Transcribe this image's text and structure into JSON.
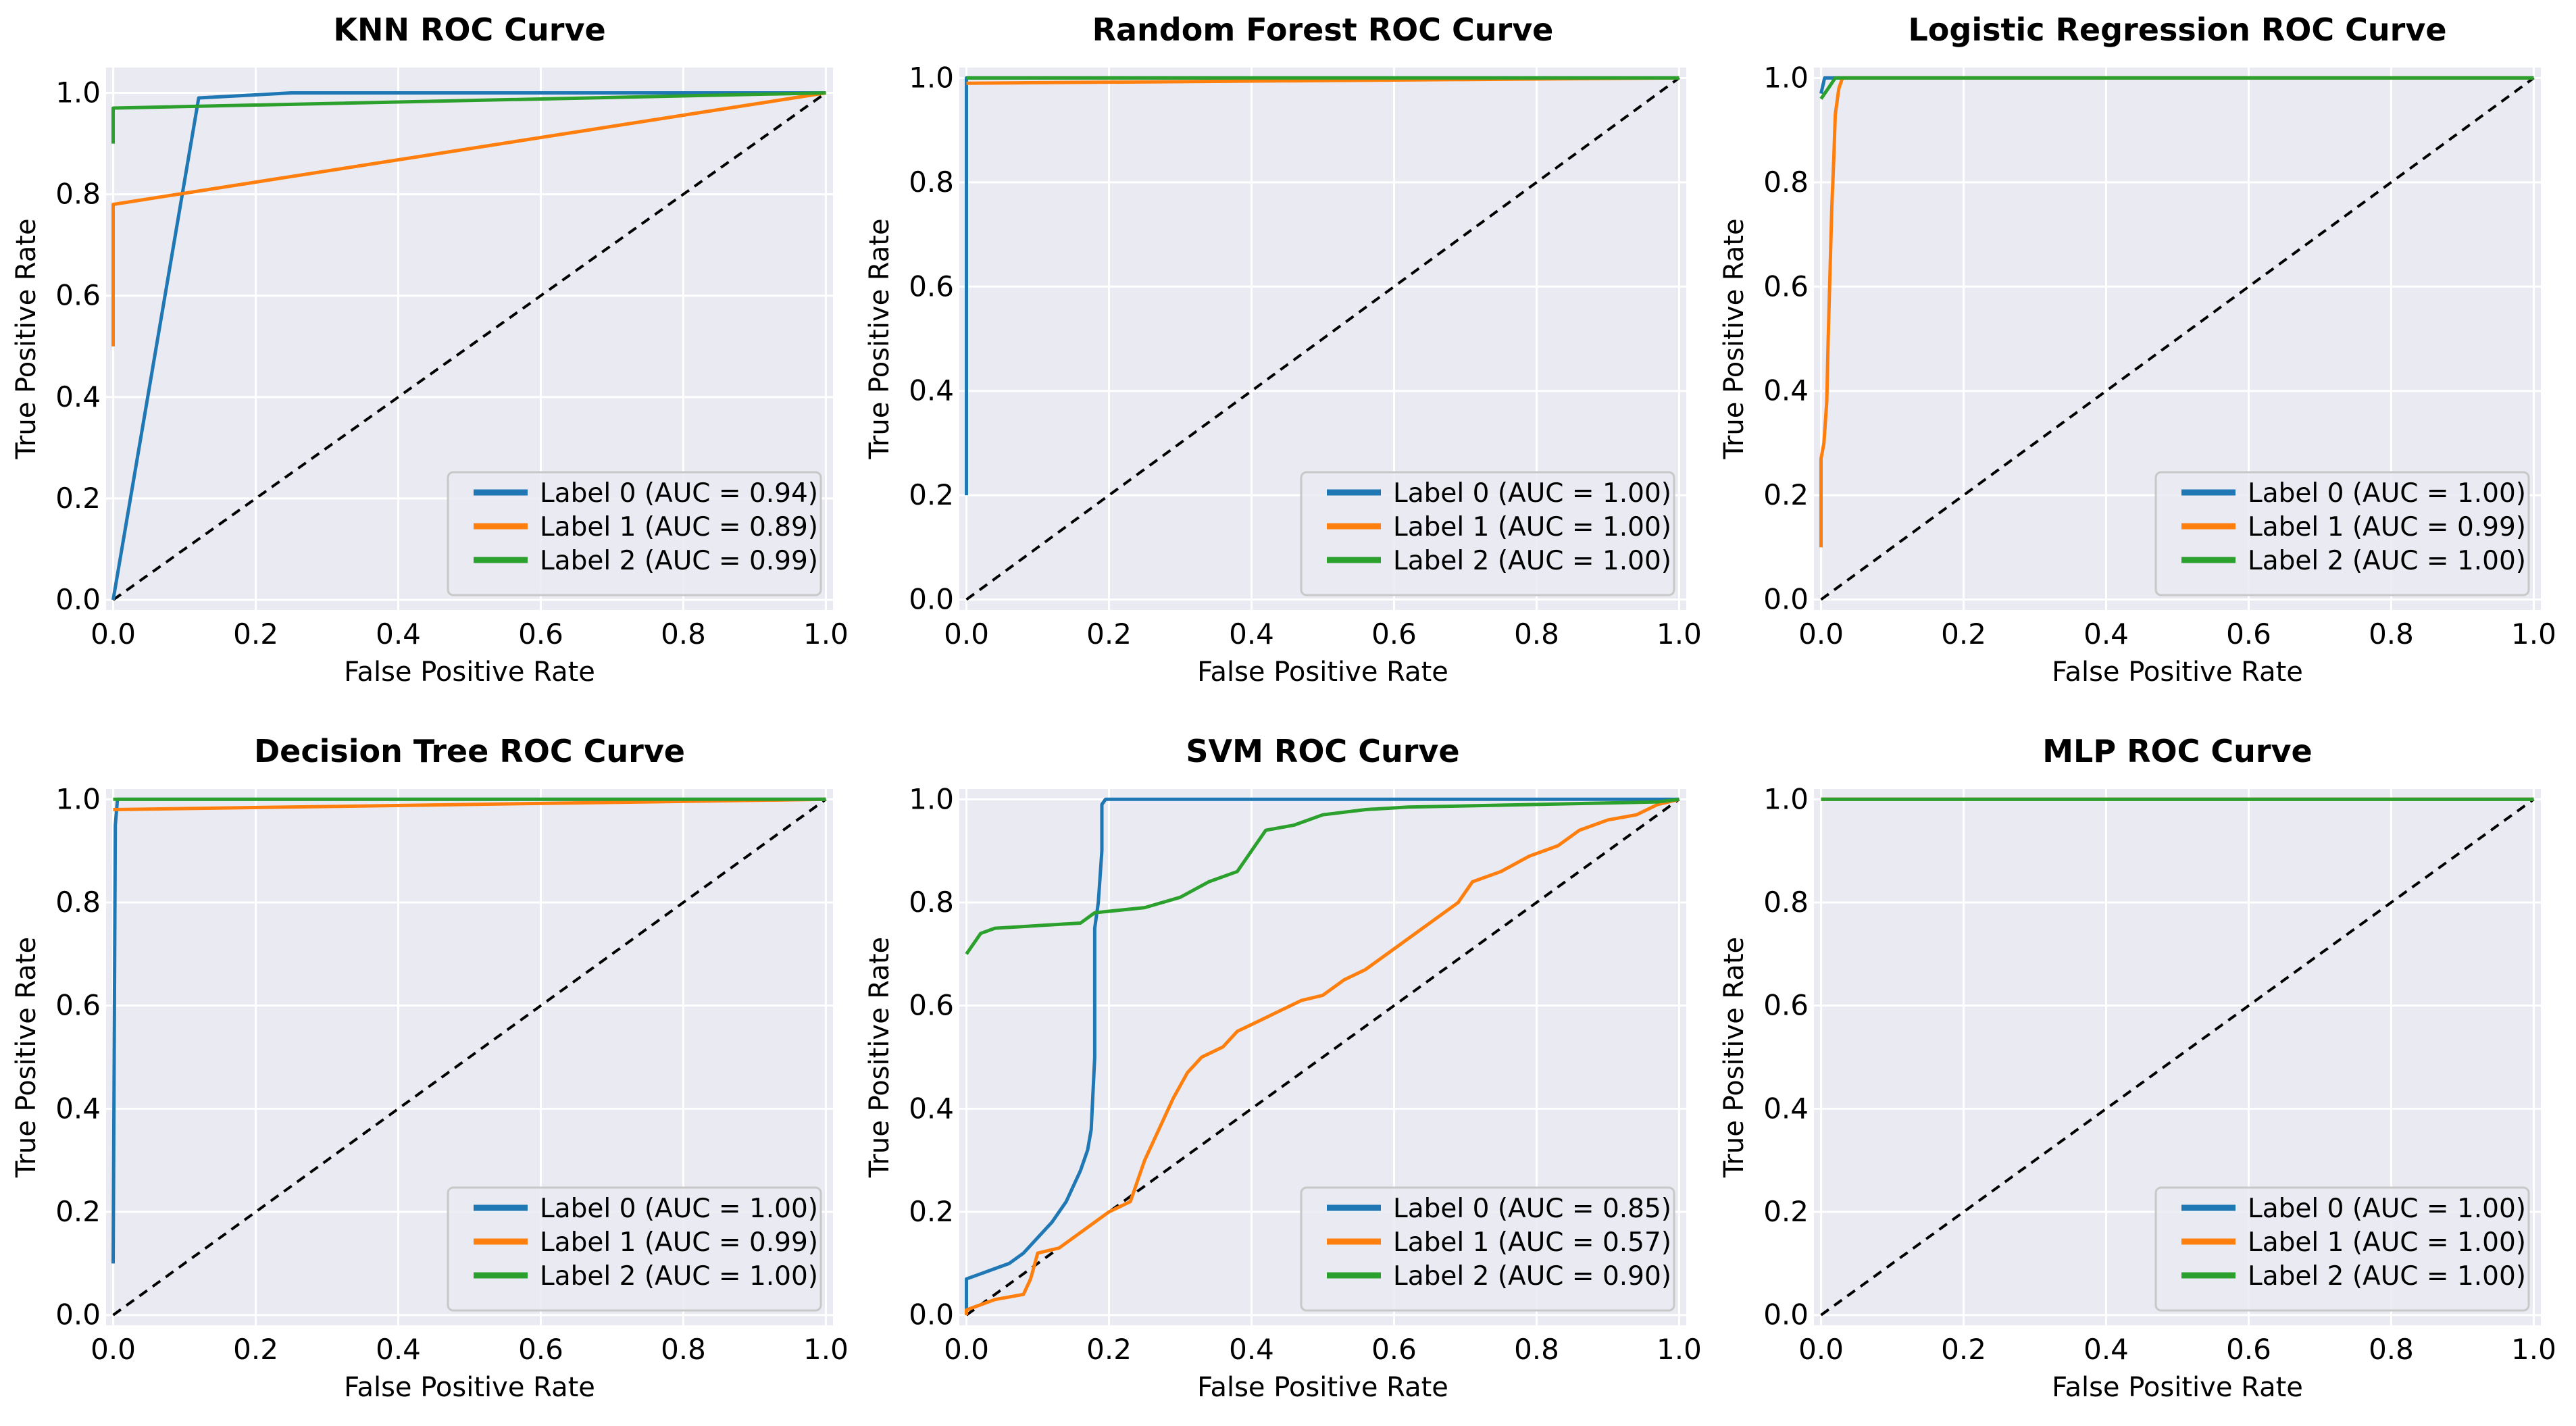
{
  "colors": {
    "label0": "#1f77b4",
    "label1": "#ff7f0e",
    "label2": "#2ca02c"
  },
  "chart_data": [
    {
      "type": "line",
      "title": "KNN ROC Curve",
      "xlabel": "False Positive Rate",
      "ylabel": "True Positive Rate",
      "xlim": [
        0,
        1
      ],
      "ylim": [
        0,
        1
      ],
      "xticks": [
        "0.0",
        "0.2",
        "0.4",
        "0.6",
        "0.8",
        "1.0"
      ],
      "yticks": [
        "0.0",
        "0.2",
        "0.4",
        "0.6",
        "0.8",
        "1.0"
      ],
      "diagonal": true,
      "legend_position": "lower-right",
      "series": [
        {
          "name": "Label 0 (AUC = 0.94)",
          "color": "#1f77b4",
          "points": [
            [
              0,
              0
            ],
            [
              0.12,
              0.99
            ],
            [
              0.25,
              1.0
            ],
            [
              1,
              1
            ]
          ]
        },
        {
          "name": "Label 1 (AUC = 0.89)",
          "color": "#ff7f0e",
          "points": [
            [
              0,
              0.5
            ],
            [
              0,
              0.78
            ],
            [
              1,
              1
            ]
          ]
        },
        {
          "name": "Label 2 (AUC = 0.99)",
          "color": "#2ca02c",
          "points": [
            [
              0,
              0.9
            ],
            [
              0,
              0.97
            ],
            [
              1,
              1
            ]
          ]
        }
      ]
    },
    {
      "type": "line",
      "title": "Random Forest ROC Curve",
      "xlabel": "False Positive Rate",
      "ylabel": "True Positive Rate",
      "xlim": [
        0,
        1
      ],
      "ylim": [
        0,
        1
      ],
      "xticks": [
        "0.0",
        "0.2",
        "0.4",
        "0.6",
        "0.8",
        "1.0"
      ],
      "yticks": [
        "0.0",
        "0.2",
        "0.4",
        "0.6",
        "0.8",
        "1.0"
      ],
      "diagonal": true,
      "legend_position": "lower-right",
      "series": [
        {
          "name": "Label 0 (AUC = 1.00)",
          "color": "#1f77b4",
          "points": [
            [
              0,
              0.2
            ],
            [
              0,
              1.0
            ],
            [
              1,
              1.0
            ]
          ]
        },
        {
          "name": "Label 1 (AUC = 1.00)",
          "color": "#ff7f0e",
          "points": [
            [
              0,
              0.99
            ],
            [
              1,
              1.0
            ]
          ]
        },
        {
          "name": "Label 2 (AUC = 1.00)",
          "color": "#2ca02c",
          "points": [
            [
              0,
              1.0
            ],
            [
              1,
              1.0
            ]
          ]
        }
      ]
    },
    {
      "type": "line",
      "title": "Logistic Regression ROC Curve",
      "xlabel": "False Positive Rate",
      "ylabel": "True Positive Rate",
      "xlim": [
        0,
        1
      ],
      "ylim": [
        0,
        1
      ],
      "xticks": [
        "0.0",
        "0.2",
        "0.4",
        "0.6",
        "0.8",
        "1.0"
      ],
      "yticks": [
        "0.0",
        "0.2",
        "0.4",
        "0.6",
        "0.8",
        "1.0"
      ],
      "diagonal": true,
      "legend_position": "lower-right",
      "series": [
        {
          "name": "Label 0 (AUC = 1.00)",
          "color": "#1f77b4",
          "points": [
            [
              0,
              0.97
            ],
            [
              0.005,
              1.0
            ],
            [
              1,
              1.0
            ]
          ]
        },
        {
          "name": "Label 1 (AUC = 0.99)",
          "color": "#ff7f0e",
          "points": [
            [
              0,
              0.1
            ],
            [
              0,
              0.27
            ],
            [
              0.004,
              0.3
            ],
            [
              0.008,
              0.38
            ],
            [
              0.01,
              0.5
            ],
            [
              0.012,
              0.6
            ],
            [
              0.015,
              0.75
            ],
            [
              0.018,
              0.85
            ],
            [
              0.02,
              0.93
            ],
            [
              0.025,
              0.98
            ],
            [
              0.03,
              1.0
            ],
            [
              1,
              1.0
            ]
          ]
        },
        {
          "name": "Label 2 (AUC = 1.00)",
          "color": "#2ca02c",
          "points": [
            [
              0,
              0.96
            ],
            [
              0.01,
              0.98
            ],
            [
              0.02,
              1.0
            ],
            [
              1,
              1.0
            ]
          ]
        }
      ]
    },
    {
      "type": "line",
      "title": "Decision Tree ROC Curve",
      "xlabel": "False Positive Rate",
      "ylabel": "True Positive Rate",
      "xlim": [
        0,
        1
      ],
      "ylim": [
        0,
        1
      ],
      "xticks": [
        "0.0",
        "0.2",
        "0.4",
        "0.6",
        "0.8",
        "1.0"
      ],
      "yticks": [
        "0.0",
        "0.2",
        "0.4",
        "0.6",
        "0.8",
        "1.0"
      ],
      "diagonal": true,
      "legend_position": "lower-right",
      "series": [
        {
          "name": "Label 0 (AUC = 1.00)",
          "color": "#1f77b4",
          "points": [
            [
              0,
              0.1
            ],
            [
              0.003,
              0.95
            ],
            [
              0.006,
              1.0
            ],
            [
              1,
              1.0
            ]
          ]
        },
        {
          "name": "Label 1 (AUC = 0.99)",
          "color": "#ff7f0e",
          "points": [
            [
              0,
              0.98
            ],
            [
              1,
              1.0
            ]
          ]
        },
        {
          "name": "Label 2 (AUC = 1.00)",
          "color": "#2ca02c",
          "points": [
            [
              0,
              1.0
            ],
            [
              1,
              1.0
            ]
          ]
        }
      ]
    },
    {
      "type": "line",
      "title": "SVM ROC Curve",
      "xlabel": "False Positive Rate",
      "ylabel": "True Positive Rate",
      "xlim": [
        0,
        1
      ],
      "ylim": [
        0,
        1
      ],
      "xticks": [
        "0.0",
        "0.2",
        "0.4",
        "0.6",
        "0.8",
        "1.0"
      ],
      "yticks": [
        "0.0",
        "0.2",
        "0.4",
        "0.6",
        "0.8",
        "1.0"
      ],
      "diagonal": true,
      "legend_position": "lower-right",
      "series": [
        {
          "name": "Label 0 (AUC = 0.85)",
          "color": "#1f77b4",
          "points": [
            [
              0,
              0
            ],
            [
              0,
              0.07
            ],
            [
              0.02,
              0.08
            ],
            [
              0.04,
              0.09
            ],
            [
              0.06,
              0.1
            ],
            [
              0.08,
              0.12
            ],
            [
              0.1,
              0.15
            ],
            [
              0.12,
              0.18
            ],
            [
              0.14,
              0.22
            ],
            [
              0.16,
              0.28
            ],
            [
              0.17,
              0.32
            ],
            [
              0.175,
              0.36
            ],
            [
              0.18,
              0.5
            ],
            [
              0.18,
              0.75
            ],
            [
              0.185,
              0.8
            ],
            [
              0.19,
              0.9
            ],
            [
              0.19,
              0.99
            ],
            [
              0.195,
              1.0
            ],
            [
              1,
              1.0
            ]
          ]
        },
        {
          "name": "Label 1 (AUC = 0.57)",
          "color": "#ff7f0e",
          "points": [
            [
              0,
              0
            ],
            [
              0,
              0.01
            ],
            [
              0.02,
              0.02
            ],
            [
              0.04,
              0.03
            ],
            [
              0.08,
              0.04
            ],
            [
              0.09,
              0.07
            ],
            [
              0.1,
              0.12
            ],
            [
              0.13,
              0.13
            ],
            [
              0.16,
              0.16
            ],
            [
              0.2,
              0.2
            ],
            [
              0.23,
              0.22
            ],
            [
              0.24,
              0.26
            ],
            [
              0.25,
              0.3
            ],
            [
              0.27,
              0.36
            ],
            [
              0.29,
              0.42
            ],
            [
              0.31,
              0.47
            ],
            [
              0.33,
              0.5
            ],
            [
              0.36,
              0.52
            ],
            [
              0.38,
              0.55
            ],
            [
              0.41,
              0.57
            ],
            [
              0.44,
              0.59
            ],
            [
              0.47,
              0.61
            ],
            [
              0.5,
              0.62
            ],
            [
              0.53,
              0.65
            ],
            [
              0.56,
              0.67
            ],
            [
              0.6,
              0.71
            ],
            [
              0.63,
              0.74
            ],
            [
              0.66,
              0.77
            ],
            [
              0.69,
              0.8
            ],
            [
              0.71,
              0.84
            ],
            [
              0.75,
              0.86
            ],
            [
              0.79,
              0.89
            ],
            [
              0.83,
              0.91
            ],
            [
              0.86,
              0.94
            ],
            [
              0.9,
              0.96
            ],
            [
              0.94,
              0.97
            ],
            [
              0.97,
              0.99
            ],
            [
              1,
              1
            ]
          ]
        },
        {
          "name": "Label 2 (AUC = 0.90)",
          "color": "#2ca02c",
          "points": [
            [
              0,
              0.7
            ],
            [
              0.01,
              0.72
            ],
            [
              0.02,
              0.74
            ],
            [
              0.04,
              0.75
            ],
            [
              0.1,
              0.755
            ],
            [
              0.16,
              0.76
            ],
            [
              0.18,
              0.78
            ],
            [
              0.25,
              0.79
            ],
            [
              0.3,
              0.81
            ],
            [
              0.34,
              0.84
            ],
            [
              0.38,
              0.86
            ],
            [
              0.4,
              0.9
            ],
            [
              0.42,
              0.94
            ],
            [
              0.46,
              0.95
            ],
            [
              0.5,
              0.97
            ],
            [
              0.56,
              0.98
            ],
            [
              0.62,
              0.985
            ],
            [
              0.8,
              0.99
            ],
            [
              0.97,
              0.995
            ],
            [
              1,
              1
            ]
          ]
        }
      ]
    },
    {
      "type": "line",
      "title": "MLP ROC Curve",
      "xlabel": "False Positive Rate",
      "ylabel": "True Positive Rate",
      "xlim": [
        0,
        1
      ],
      "ylim": [
        0,
        1
      ],
      "xticks": [
        "0.0",
        "0.2",
        "0.4",
        "0.6",
        "0.8",
        "1.0"
      ],
      "yticks": [
        "0.0",
        "0.2",
        "0.4",
        "0.6",
        "0.8",
        "1.0"
      ],
      "diagonal": true,
      "legend_position": "lower-right",
      "series": [
        {
          "name": "Label 0 (AUC = 1.00)",
          "color": "#1f77b4",
          "points": [
            [
              0,
              1.0
            ],
            [
              1,
              1.0
            ]
          ]
        },
        {
          "name": "Label 1 (AUC = 1.00)",
          "color": "#ff7f0e",
          "points": [
            [
              0,
              1.0
            ],
            [
              1,
              1.0
            ]
          ]
        },
        {
          "name": "Label 2 (AUC = 1.00)",
          "color": "#2ca02c",
          "points": [
            [
              0,
              1.0
            ],
            [
              1,
              1.0
            ]
          ]
        }
      ]
    }
  ]
}
